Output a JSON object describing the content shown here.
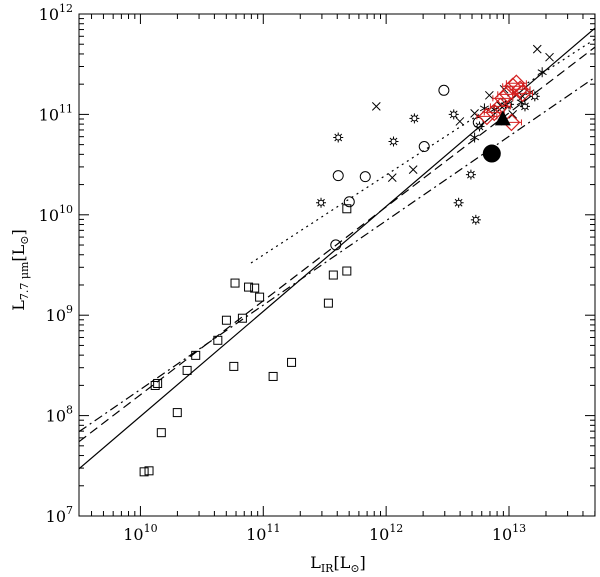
{
  "chart_data": {
    "type": "scatter",
    "title": "",
    "xlabel": {
      "main": "L",
      "sub": "IR",
      "rest": "[L",
      "sun_sub": "⊙",
      "close": "]"
    },
    "ylabel": {
      "main": "L",
      "sub": "7.7 μm",
      "rest": "[L",
      "sun_sub": "⊙",
      "close": "]"
    },
    "xscale": "log",
    "yscale": "log",
    "xlim_log10": [
      9.5,
      13.7
    ],
    "ylim_log10": [
      7,
      12
    ],
    "x_ticks": [
      {
        "base": "10",
        "exp": "10",
        "log": 10
      },
      {
        "base": "10",
        "exp": "11",
        "log": 11
      },
      {
        "base": "10",
        "exp": "12",
        "log": 12
      },
      {
        "base": "10",
        "exp": "13",
        "log": 13
      }
    ],
    "y_ticks": [
      {
        "base": "10",
        "exp": "7",
        "log": 7
      },
      {
        "base": "10",
        "exp": "8",
        "log": 8
      },
      {
        "base": "10",
        "exp": "9",
        "log": 9
      },
      {
        "base": "10",
        "exp": "10",
        "log": 10
      },
      {
        "base": "10",
        "exp": "11",
        "log": 11
      },
      {
        "base": "10",
        "exp": "12",
        "log": 12
      }
    ],
    "grid": false,
    "legend": "none",
    "colors": {
      "axis": "#000000",
      "red": "#d42020",
      "black": "#000000"
    },
    "series": [
      {
        "marker": "open-square",
        "points": [
          [
            10.03,
            7.44
          ],
          [
            10.07,
            7.45
          ],
          [
            10.12,
            8.3
          ],
          [
            10.14,
            8.32
          ],
          [
            10.17,
            7.83
          ],
          [
            10.3,
            8.03
          ],
          [
            10.38,
            8.45
          ],
          [
            10.45,
            8.6
          ],
          [
            10.63,
            8.75
          ],
          [
            10.7,
            8.95
          ],
          [
            10.76,
            8.49
          ],
          [
            10.77,
            9.32
          ],
          [
            10.83,
            8.97
          ],
          [
            10.88,
            9.28
          ],
          [
            10.93,
            9.27
          ],
          [
            10.97,
            9.18
          ],
          [
            11.08,
            8.39
          ],
          [
            11.23,
            8.53
          ],
          [
            11.53,
            9.12
          ],
          [
            11.57,
            9.4
          ],
          [
            11.68,
            9.44
          ],
          [
            11.68,
            10.06
          ]
        ]
      },
      {
        "marker": "open-circle",
        "points": [
          [
            11.59,
            9.7
          ],
          [
            11.61,
            10.39
          ],
          [
            11.7,
            10.13
          ],
          [
            11.83,
            10.38
          ],
          [
            12.31,
            10.68
          ],
          [
            12.47,
            11.24
          ],
          [
            12.75,
            10.92
          ]
        ]
      },
      {
        "marker": "star",
        "points": [
          [
            11.47,
            10.12
          ],
          [
            11.61,
            10.77
          ],
          [
            12.06,
            10.73
          ],
          [
            12.23,
            10.96
          ],
          [
            12.55,
            11.0
          ],
          [
            12.59,
            10.12
          ],
          [
            12.69,
            10.4
          ],
          [
            12.73,
            9.95
          ],
          [
            12.76,
            10.88
          ],
          [
            13.0,
            11.1
          ],
          [
            13.13,
            11.08
          ],
          [
            13.21,
            11.18
          ]
        ]
      },
      {
        "marker": "x-cross",
        "points": [
          [
            11.92,
            11.08
          ],
          [
            12.05,
            10.37
          ],
          [
            12.22,
            10.45
          ],
          [
            12.6,
            10.93
          ],
          [
            12.72,
            11.01
          ],
          [
            12.84,
            11.19
          ],
          [
            12.93,
            11.09
          ],
          [
            12.96,
            11.25
          ],
          [
            13.03,
            11.0
          ],
          [
            13.11,
            11.18
          ],
          [
            13.23,
            11.65
          ],
          [
            13.33,
            11.57
          ]
        ]
      },
      {
        "marker": "asterisk",
        "points": [
          [
            12.72,
            10.77
          ],
          [
            12.8,
            11.06
          ],
          [
            12.88,
            11.05
          ],
          [
            12.97,
            11.09
          ],
          [
            13.1,
            11.12
          ],
          [
            13.17,
            11.22
          ],
          [
            13.27,
            11.42
          ]
        ]
      },
      {
        "marker": "red-diamond-errorbar",
        "points": [
          [
            12.82,
            10.98
          ],
          [
            12.88,
            11.02
          ],
          [
            12.93,
            11.08
          ],
          [
            12.95,
            11.16
          ],
          [
            12.99,
            11.2
          ],
          [
            13.02,
            10.92
          ],
          [
            13.03,
            11.28
          ],
          [
            13.06,
            11.31
          ],
          [
            13.09,
            11.25
          ],
          [
            13.11,
            11.21
          ]
        ]
      },
      {
        "marker": "filled-circle-large",
        "points": [
          [
            12.86,
            10.61
          ]
        ]
      },
      {
        "marker": "filled-triangle",
        "points": [
          [
            12.95,
            10.95
          ]
        ]
      }
    ],
    "lines": [
      {
        "style": "solid",
        "from": [
          9.5,
          7.47
        ],
        "to": [
          13.7,
          11.86
        ]
      },
      {
        "style": "dashed",
        "from": [
          9.5,
          7.74
        ],
        "to": [
          13.7,
          11.67
        ]
      },
      {
        "style": "dash-dot",
        "from": [
          9.5,
          7.84
        ],
        "to": [
          13.7,
          11.37
        ]
      },
      {
        "style": "dotted",
        "from": [
          10.9,
          9.52
        ],
        "to": [
          13.7,
          11.75
        ]
      }
    ]
  }
}
